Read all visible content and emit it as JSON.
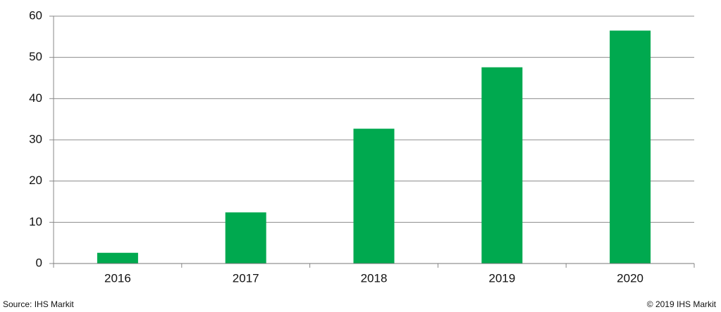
{
  "chart_data": {
    "type": "bar",
    "categories": [
      "2016",
      "2017",
      "2018",
      "2019",
      "2020"
    ],
    "values": [
      2.6,
      12.4,
      32.7,
      47.6,
      56.5
    ],
    "color": "#00a94f",
    "ylim": [
      0,
      60
    ],
    "yticks": [
      0,
      10,
      20,
      30,
      40,
      50,
      60
    ],
    "grid": true,
    "source": "Source: IHS Markit",
    "copyright": "© 2019 IHS Markit"
  }
}
